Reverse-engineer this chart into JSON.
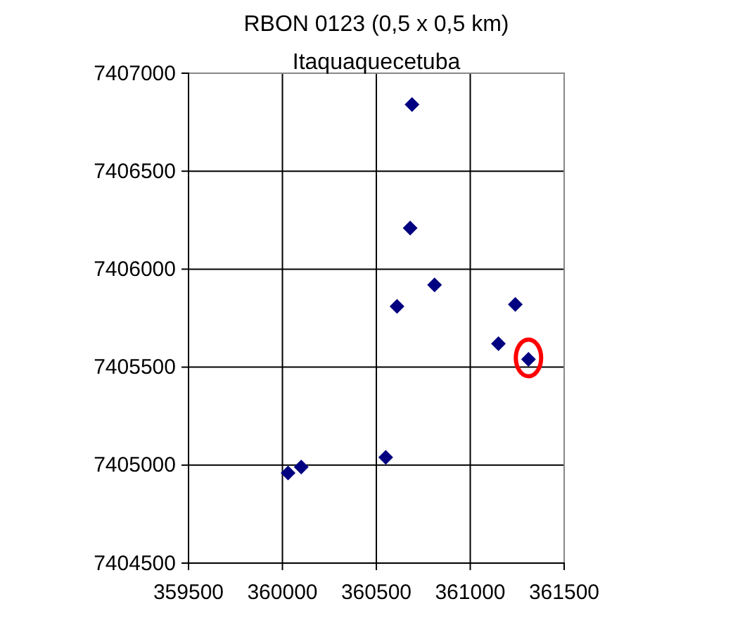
{
  "chart_data": {
    "type": "scatter",
    "title": "RBON 0123 (0,5 x 0,5 km)",
    "subtitle": "Itaquaquecetuba",
    "x": [
      360690,
      360680,
      360810,
      360610,
      361240,
      361150,
      360550,
      360100,
      360030,
      361310
    ],
    "values": [
      7406840,
      7406210,
      7405920,
      7405810,
      7405820,
      7405620,
      7405040,
      7404990,
      7404960,
      7405540
    ],
    "color": "#000080",
    "marker": "diamond",
    "grid": true,
    "xlim": [
      359500,
      361500
    ],
    "xticks": [
      359500,
      360000,
      360500,
      361000,
      361500
    ],
    "ylim": [
      7404500,
      7407000
    ],
    "yticks": [
      7404500,
      7405000,
      7405500,
      7406000,
      7406500,
      7407000
    ]
  }
}
